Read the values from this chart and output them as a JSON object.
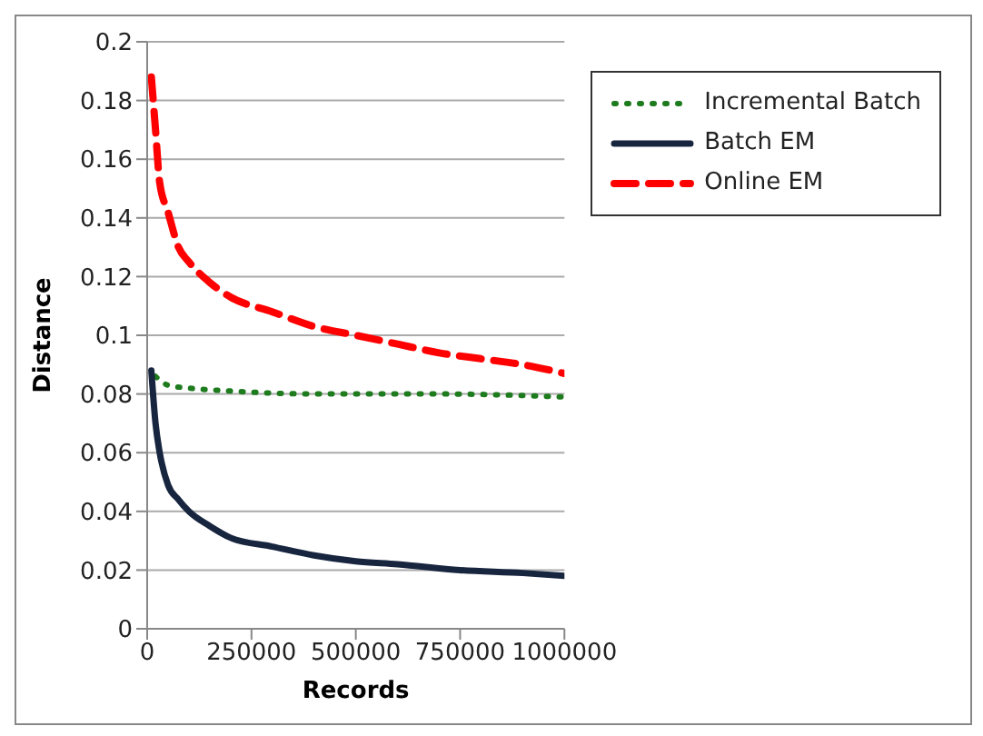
{
  "chart_data": {
    "type": "line",
    "xlabel": "Records",
    "ylabel": "Distance",
    "xlim": [
      0,
      1000000
    ],
    "xticks": [
      0,
      250000,
      500000,
      750000,
      1000000
    ],
    "ylim": [
      0,
      0.2
    ],
    "yticks": [
      0,
      0.02,
      0.04,
      0.06,
      0.08,
      0.1,
      0.12,
      0.14,
      0.16,
      0.18,
      0.2
    ],
    "grid": "y",
    "legend": "top right",
    "marker": "none",
    "series": [
      {
        "name": "Incremental Batch",
        "color": "#1e7b1e",
        "line_style": "dotted",
        "x": [
          20000,
          50000,
          100000,
          200000,
          400000,
          700000,
          1000000
        ],
        "values": [
          0.086,
          0.083,
          0.082,
          0.081,
          0.08,
          0.08,
          0.079
        ]
      },
      {
        "name": "Batch EM",
        "color": "#17253f",
        "line_style": "solid",
        "x": [
          10000,
          20000,
          30000,
          50000,
          75000,
          100000,
          150000,
          200000,
          300000,
          400000,
          500000,
          600000,
          750000,
          900000,
          1000000
        ],
        "values": [
          0.088,
          0.07,
          0.06,
          0.049,
          0.044,
          0.04,
          0.035,
          0.031,
          0.028,
          0.025,
          0.023,
          0.022,
          0.02,
          0.019,
          0.018
        ]
      },
      {
        "name": "Online EM",
        "color": "#ff0000",
        "line_style": "dashed",
        "x": [
          10000,
          20000,
          30000,
          50000,
          75000,
          100000,
          150000,
          200000,
          300000,
          400000,
          500000,
          600000,
          700000,
          800000,
          900000,
          1000000
        ],
        "values": [
          0.188,
          0.17,
          0.152,
          0.142,
          0.13,
          0.125,
          0.118,
          0.113,
          0.108,
          0.103,
          0.1,
          0.097,
          0.094,
          0.092,
          0.09,
          0.087
        ]
      }
    ]
  }
}
